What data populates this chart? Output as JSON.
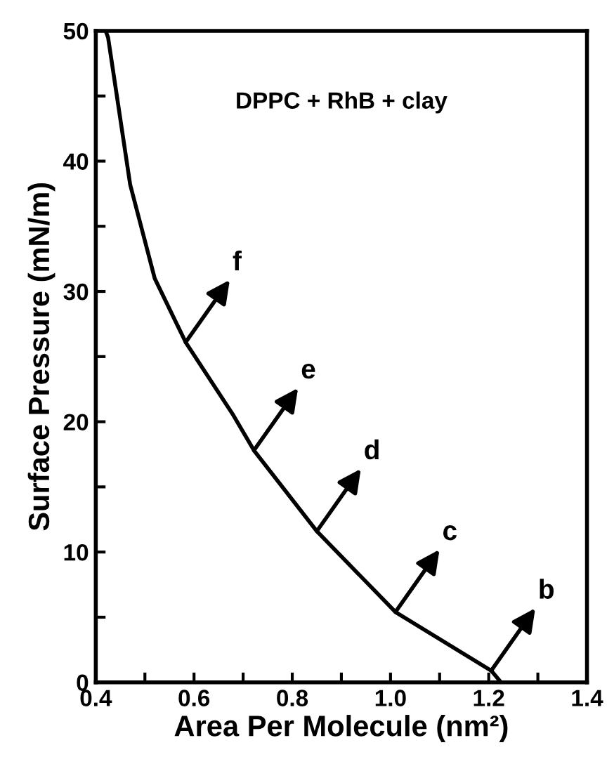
{
  "chart_data": {
    "type": "line",
    "xlabel": "Area Per Molecule (nm²)",
    "ylabel": "Surface Pressure (mN/m)",
    "x": [
      0.42,
      0.425,
      0.47,
      0.52,
      0.583,
      0.68,
      0.722,
      0.85,
      1.01,
      1.205,
      1.225
    ],
    "series": [
      {
        "color": "#000000",
        "values": [
          50,
          49.5,
          38.2,
          31,
          26.1,
          20.5,
          17.8,
          11.6,
          5.4,
          0.9,
          0
        ]
      }
    ],
    "xlim": [
      0.4,
      1.4
    ],
    "ylim": [
      0,
      50
    ],
    "xticks": [
      {
        "value": 0.4,
        "label": "0.4"
      },
      {
        "value": 0.5,
        "label": null
      },
      {
        "value": 0.6,
        "label": "0.6"
      },
      {
        "value": 0.7,
        "label": null
      },
      {
        "value": 0.8,
        "label": "0.8"
      },
      {
        "value": 0.9,
        "label": null
      },
      {
        "value": 1.0,
        "label": "1.0"
      },
      {
        "value": 1.1,
        "label": null
      },
      {
        "value": 1.2,
        "label": "1.2"
      },
      {
        "value": 1.3,
        "label": null
      },
      {
        "value": 1.4,
        "label": "1.4"
      }
    ],
    "yticks": [
      0,
      {
        "value": 5,
        "label": null
      },
      10,
      {
        "value": 15,
        "label": null
      },
      20,
      {
        "value": 25,
        "label": null
      },
      30,
      {
        "value": 35,
        "label": null
      },
      40,
      {
        "value": 45,
        "label": null
      },
      50
    ],
    "annotations": [
      "DPPC + RhB + clay",
      {
        "text": "f",
        "x": 0.583,
        "y": 26.1
      },
      {
        "text": "e",
        "x": 0.722,
        "y": 17.8
      },
      {
        "text": "d",
        "x": 0.85,
        "y": 11.6
      },
      {
        "text": "c",
        "x": 1.01,
        "y": 5.4
      },
      {
        "text": "b",
        "x": 1.205,
        "y": 0.9
      }
    ],
    "marker": "none",
    "line_style": "solid"
  }
}
